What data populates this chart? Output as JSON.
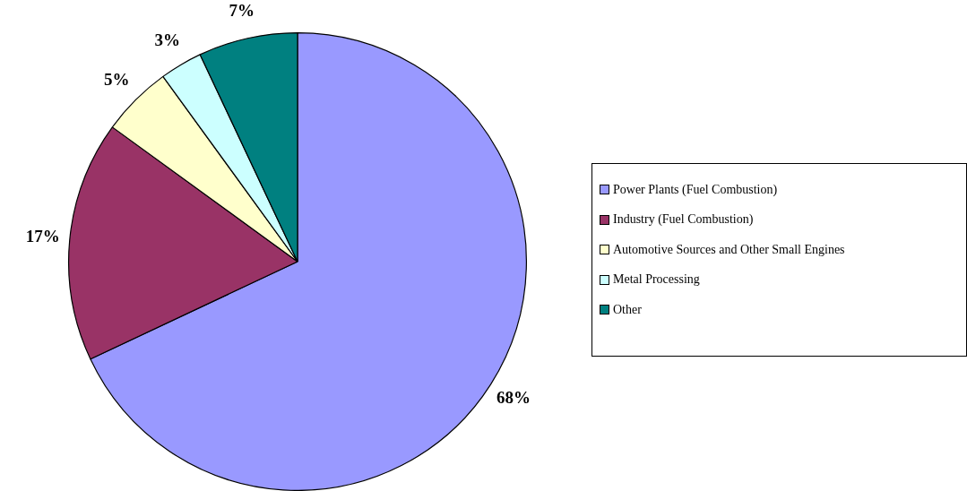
{
  "chart_data": {
    "type": "pie",
    "categories": [
      "Power Plants (Fuel Combustion)",
      "Industry (Fuel Combustion)",
      "Automotive Sources and Other Small Engines",
      "Metal Processing",
      "Other"
    ],
    "values": [
      68,
      17,
      5,
      3,
      7
    ],
    "value_labels": [
      "68%",
      "17%",
      "5%",
      "3%",
      "7%"
    ],
    "colors": [
      "#9999ff",
      "#993366",
      "#ffffcc",
      "#ccffff",
      "#008080"
    ],
    "legend": "right"
  }
}
